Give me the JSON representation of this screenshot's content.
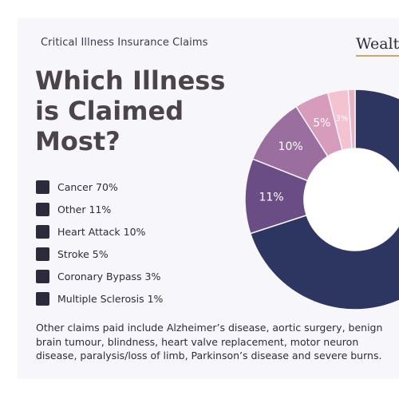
{
  "card": {
    "subtitle": "Critical Illness Insurance Claims",
    "brand": "Wealth",
    "title_lines": [
      "Which Illness",
      "is Claimed",
      "Most?"
    ],
    "note": "Other claims paid include Alzheimer’s disease, aortic surgery, benign brain tumour, blindness, heart valve replacement, motor neuron disease, paralysis/loss of limb, Parkinson’s disease and severe burns."
  },
  "legend": [
    {
      "label": "Cancer 70%"
    },
    {
      "label": "Other 11%"
    },
    {
      "label": "Heart Attack 10%"
    },
    {
      "label": "Stroke 5%"
    },
    {
      "label": "Coronary Bypass 3%"
    },
    {
      "label": "Multiple Sclerosis 1%"
    }
  ],
  "chart_data": {
    "type": "pie",
    "style": "donut",
    "title": "Which Illness is Claimed Most?",
    "categories": [
      "Cancer",
      "Other",
      "Heart Attack",
      "Stroke",
      "Coronary Bypass",
      "Multiple Sclerosis"
    ],
    "values": [
      70,
      11,
      10,
      5,
      3,
      1
    ],
    "slice_labels": [
      "",
      "11%",
      "10%",
      "5%",
      "3%",
      ""
    ],
    "colors": [
      "#2d3561",
      "#6a4d85",
      "#9a6e9e",
      "#d79bbb",
      "#f5c2d2",
      "#e8b3c4"
    ],
    "legend_position": "left"
  }
}
